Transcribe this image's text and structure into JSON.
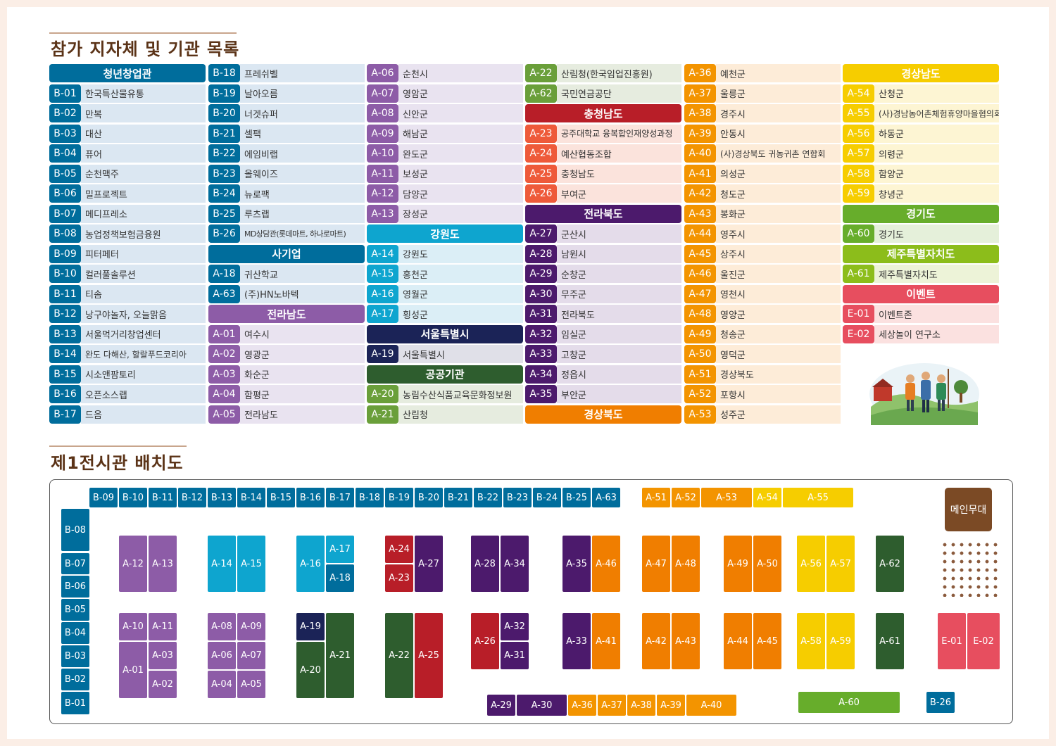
{
  "title_list": "참가 지자체 및 기관 목록",
  "title_map": "제1전시관 배치도",
  "colors": {
    "cheongnyeon": "#006d9c",
    "sagiup": "#006d9c",
    "jeonnam": "#8d5ca7",
    "gangwon": "#0ea5cf",
    "seoul": "#1b2357",
    "gonggong": "#2e5d2e",
    "sanrim_light": "#6a9f3a",
    "chungnam": "#b81e28",
    "jeonbuk": "#4c1a6c",
    "gyeongbuk": "#f07e00",
    "gyeongnam": "#f6cd00",
    "gyeonggi": "#67ad2b",
    "jeju": "#8cbd1b",
    "event": "#e74e5f"
  },
  "columns": [
    [
      {
        "type": "hdr",
        "label": "청년창업관",
        "color": "#006d9c"
      },
      {
        "code": "B-01",
        "name": "한국특산물유통",
        "color": "#006d9c",
        "bg": "#dbe7f2"
      },
      {
        "code": "B-02",
        "name": "만복",
        "color": "#006d9c",
        "bg": "#dbe7f2"
      },
      {
        "code": "B-03",
        "name": "대산",
        "color": "#006d9c",
        "bg": "#dbe7f2"
      },
      {
        "code": "B-04",
        "name": "퓨어",
        "color": "#006d9c",
        "bg": "#dbe7f2"
      },
      {
        "code": "B-05",
        "name": "순천맥주",
        "color": "#006d9c",
        "bg": "#dbe7f2"
      },
      {
        "code": "B-06",
        "name": "밀프로젝트",
        "color": "#006d9c",
        "bg": "#dbe7f2"
      },
      {
        "code": "B-07",
        "name": "메디프레소",
        "color": "#006d9c",
        "bg": "#dbe7f2"
      },
      {
        "code": "B-08",
        "name": "농업정책보험금융원",
        "color": "#006d9c",
        "bg": "#dbe7f2"
      },
      {
        "code": "B-09",
        "name": "피터페터",
        "color": "#006d9c",
        "bg": "#dbe7f2"
      },
      {
        "code": "B-10",
        "name": "컬러풀솔루션",
        "color": "#006d9c",
        "bg": "#dbe7f2"
      },
      {
        "code": "B-11",
        "name": "티솜",
        "color": "#006d9c",
        "bg": "#dbe7f2"
      },
      {
        "code": "B-12",
        "name": "낭구야놀자, 오늘맑음",
        "color": "#006d9c",
        "bg": "#dbe7f2"
      },
      {
        "code": "B-13",
        "name": "서울먹거리창업센터",
        "color": "#006d9c",
        "bg": "#dbe7f2"
      },
      {
        "code": "B-14",
        "name": "완도 다해산, 할랄푸드코리아",
        "color": "#006d9c",
        "bg": "#dbe7f2"
      },
      {
        "code": "B-15",
        "name": "시소앤팜토리",
        "color": "#006d9c",
        "bg": "#dbe7f2"
      },
      {
        "code": "B-16",
        "name": "오픈소스랩",
        "color": "#006d9c",
        "bg": "#dbe7f2"
      },
      {
        "code": "B-17",
        "name": "드음",
        "color": "#006d9c",
        "bg": "#dbe7f2"
      }
    ],
    [
      {
        "code": "B-18",
        "name": "프레쉬벨",
        "color": "#006d9c",
        "bg": "#dbe7f2"
      },
      {
        "code": "B-19",
        "name": "날아오름",
        "color": "#006d9c",
        "bg": "#dbe7f2"
      },
      {
        "code": "B-20",
        "name": "너겟슈퍼",
        "color": "#006d9c",
        "bg": "#dbe7f2"
      },
      {
        "code": "B-21",
        "name": "셀팩",
        "color": "#006d9c",
        "bg": "#dbe7f2"
      },
      {
        "code": "B-22",
        "name": "에임비랩",
        "color": "#006d9c",
        "bg": "#dbe7f2"
      },
      {
        "code": "B-23",
        "name": "올웨이즈",
        "color": "#006d9c",
        "bg": "#dbe7f2"
      },
      {
        "code": "B-24",
        "name": "뉴로팩",
        "color": "#006d9c",
        "bg": "#dbe7f2"
      },
      {
        "code": "B-25",
        "name": "루츠랩",
        "color": "#006d9c",
        "bg": "#dbe7f2"
      },
      {
        "code": "B-26",
        "name": "MD상담관(롯데마트, 하나로마트)",
        "color": "#006d9c",
        "bg": "#dbe7f2"
      },
      {
        "type": "hdr",
        "label": "사기업",
        "color": "#006d9c"
      },
      {
        "code": "A-18",
        "name": "귀산학교",
        "color": "#006d9c",
        "bg": "#dbe7f2"
      },
      {
        "code": "A-63",
        "name": "(주)HN노바텍",
        "color": "#006d9c",
        "bg": "#dbe7f2"
      },
      {
        "type": "hdr",
        "label": "전라남도",
        "color": "#8d5ca7"
      },
      {
        "code": "A-01",
        "name": "여수시",
        "color": "#8d5ca7",
        "bg": "#e9e3f0"
      },
      {
        "code": "A-02",
        "name": "영광군",
        "color": "#8d5ca7",
        "bg": "#e9e3f0"
      },
      {
        "code": "A-03",
        "name": "화순군",
        "color": "#8d5ca7",
        "bg": "#e9e3f0"
      },
      {
        "code": "A-04",
        "name": "함평군",
        "color": "#8d5ca7",
        "bg": "#e9e3f0"
      },
      {
        "code": "A-05",
        "name": "전라남도",
        "color": "#8d5ca7",
        "bg": "#e9e3f0"
      }
    ],
    [
      {
        "code": "A-06",
        "name": "순천시",
        "color": "#8d5ca7",
        "bg": "#e9e3f0"
      },
      {
        "code": "A-07",
        "name": "영암군",
        "color": "#8d5ca7",
        "bg": "#e9e3f0"
      },
      {
        "code": "A-08",
        "name": "신안군",
        "color": "#8d5ca7",
        "bg": "#e9e3f0"
      },
      {
        "code": "A-09",
        "name": "해남군",
        "color": "#8d5ca7",
        "bg": "#e9e3f0"
      },
      {
        "code": "A-10",
        "name": "완도군",
        "color": "#8d5ca7",
        "bg": "#e9e3f0"
      },
      {
        "code": "A-11",
        "name": "보성군",
        "color": "#8d5ca7",
        "bg": "#e9e3f0"
      },
      {
        "code": "A-12",
        "name": "담양군",
        "color": "#8d5ca7",
        "bg": "#e9e3f0"
      },
      {
        "code": "A-13",
        "name": "장성군",
        "color": "#8d5ca7",
        "bg": "#e9e3f0"
      },
      {
        "type": "hdr",
        "label": "강원도",
        "color": "#0ea5cf"
      },
      {
        "code": "A-14",
        "name": "강원도",
        "color": "#0ea5cf",
        "bg": "#dbeef6"
      },
      {
        "code": "A-15",
        "name": "홍천군",
        "color": "#0ea5cf",
        "bg": "#dbeef6"
      },
      {
        "code": "A-16",
        "name": "영월군",
        "color": "#0ea5cf",
        "bg": "#dbeef6"
      },
      {
        "code": "A-17",
        "name": "횡성군",
        "color": "#0ea5cf",
        "bg": "#dbeef6"
      },
      {
        "type": "hdr",
        "label": "서울특별시",
        "color": "#1b2357"
      },
      {
        "code": "A-19",
        "name": "서울특별시",
        "color": "#1b2357",
        "bg": "#e0e0e8"
      },
      {
        "type": "hdr",
        "label": "공공기관",
        "color": "#2e5d2e"
      },
      {
        "code": "A-20",
        "name": "농림수산식품교육문화정보원",
        "color": "#6a9f3a",
        "bg": "#e6ecdf"
      },
      {
        "code": "A-21",
        "name": "산림청",
        "color": "#6a9f3a",
        "bg": "#e6ecdf"
      }
    ],
    [
      {
        "code": "A-22",
        "name": "산림청(한국임업진흥원)",
        "color": "#6a9f3a",
        "bg": "#e6ecdf"
      },
      {
        "code": "A-62",
        "name": "국민연금공단",
        "color": "#6a9f3a",
        "bg": "#e6ecdf"
      },
      {
        "type": "hdr",
        "label": "충청남도",
        "color": "#b81e28"
      },
      {
        "code": "A-23",
        "name": "공주대학교 융복합인재양성과정",
        "color": "#ee5a3a",
        "bg": "#fbe3dc"
      },
      {
        "code": "A-24",
        "name": "예산협동조합",
        "color": "#ee5a3a",
        "bg": "#fbe3dc"
      },
      {
        "code": "A-25",
        "name": "충청남도",
        "color": "#ee5a3a",
        "bg": "#fbe3dc"
      },
      {
        "code": "A-26",
        "name": "부여군",
        "color": "#ee5a3a",
        "bg": "#fbe3dc"
      },
      {
        "type": "hdr",
        "label": "전라북도",
        "color": "#4c1a6c"
      },
      {
        "code": "A-27",
        "name": "군산시",
        "color": "#4c1a6c",
        "bg": "#e4dcea"
      },
      {
        "code": "A-28",
        "name": "남원시",
        "color": "#4c1a6c",
        "bg": "#e4dcea"
      },
      {
        "code": "A-29",
        "name": "순창군",
        "color": "#4c1a6c",
        "bg": "#e4dcea"
      },
      {
        "code": "A-30",
        "name": "무주군",
        "color": "#4c1a6c",
        "bg": "#e4dcea"
      },
      {
        "code": "A-31",
        "name": "전라북도",
        "color": "#4c1a6c",
        "bg": "#e4dcea"
      },
      {
        "code": "A-32",
        "name": "임실군",
        "color": "#4c1a6c",
        "bg": "#e4dcea"
      },
      {
        "code": "A-33",
        "name": "고창군",
        "color": "#4c1a6c",
        "bg": "#e4dcea"
      },
      {
        "code": "A-34",
        "name": "정읍시",
        "color": "#4c1a6c",
        "bg": "#e4dcea"
      },
      {
        "code": "A-35",
        "name": "부안군",
        "color": "#4c1a6c",
        "bg": "#e4dcea"
      },
      {
        "type": "hdr",
        "label": "경상북도",
        "color": "#f07e00"
      }
    ],
    [
      {
        "code": "A-36",
        "name": "예천군",
        "color": "#f39400",
        "bg": "#fdecd8"
      },
      {
        "code": "A-37",
        "name": "울릉군",
        "color": "#f39400",
        "bg": "#fdecd8"
      },
      {
        "code": "A-38",
        "name": "경주시",
        "color": "#f39400",
        "bg": "#fdecd8"
      },
      {
        "code": "A-39",
        "name": "안동시",
        "color": "#f39400",
        "bg": "#fdecd8"
      },
      {
        "code": "A-40",
        "name": "(사)경상북도 귀농귀촌 연합회",
        "color": "#f39400",
        "bg": "#fdecd8"
      },
      {
        "code": "A-41",
        "name": "의성군",
        "color": "#f39400",
        "bg": "#fdecd8"
      },
      {
        "code": "A-42",
        "name": "청도군",
        "color": "#f39400",
        "bg": "#fdecd8"
      },
      {
        "code": "A-43",
        "name": "봉화군",
        "color": "#f39400",
        "bg": "#fdecd8"
      },
      {
        "code": "A-44",
        "name": "영주시",
        "color": "#f39400",
        "bg": "#fdecd8"
      },
      {
        "code": "A-45",
        "name": "상주시",
        "color": "#f39400",
        "bg": "#fdecd8"
      },
      {
        "code": "A-46",
        "name": "울진군",
        "color": "#f39400",
        "bg": "#fdecd8"
      },
      {
        "code": "A-47",
        "name": "영천시",
        "color": "#f39400",
        "bg": "#fdecd8"
      },
      {
        "code": "A-48",
        "name": "영양군",
        "color": "#f39400",
        "bg": "#fdecd8"
      },
      {
        "code": "A-49",
        "name": "청송군",
        "color": "#f39400",
        "bg": "#fdecd8"
      },
      {
        "code": "A-50",
        "name": "영덕군",
        "color": "#f39400",
        "bg": "#fdecd8"
      },
      {
        "code": "A-51",
        "name": "경상북도",
        "color": "#f39400",
        "bg": "#fdecd8"
      },
      {
        "code": "A-52",
        "name": "포항시",
        "color": "#f39400",
        "bg": "#fdecd8"
      },
      {
        "code": "A-53",
        "name": "성주군",
        "color": "#f39400",
        "bg": "#fdecd8"
      }
    ],
    [
      {
        "type": "hdr",
        "label": "경상남도",
        "color": "#f6cd00"
      },
      {
        "code": "A-54",
        "name": "산청군",
        "color": "#f6cd00",
        "bg": "#fdf5d3"
      },
      {
        "code": "A-55",
        "name": "(사)경남농어촌체험휴양마을협의회",
        "color": "#f6cd00",
        "bg": "#fdf5d3"
      },
      {
        "code": "A-56",
        "name": "하동군",
        "color": "#f6cd00",
        "bg": "#fdf5d3"
      },
      {
        "code": "A-57",
        "name": "의령군",
        "color": "#f6cd00",
        "bg": "#fdf5d3"
      },
      {
        "code": "A-58",
        "name": "함양군",
        "color": "#f6cd00",
        "bg": "#fdf5d3"
      },
      {
        "code": "A-59",
        "name": "창녕군",
        "color": "#f6cd00",
        "bg": "#fdf5d3"
      },
      {
        "type": "hdr",
        "label": "경기도",
        "color": "#67ad2b"
      },
      {
        "code": "A-60",
        "name": "경기도",
        "color": "#67ad2b",
        "bg": "#e5f0da"
      },
      {
        "type": "hdr",
        "label": "제주특별자치도",
        "color": "#8cbd1b"
      },
      {
        "code": "A-61",
        "name": "제주특별자치도",
        "color": "#8cbd1b",
        "bg": "#edf3d8"
      },
      {
        "type": "hdr",
        "label": "이벤트",
        "color": "#e74e5f"
      },
      {
        "code": "E-01",
        "name": "이벤트존",
        "color": "#e74e5f",
        "bg": "#fbe1e0"
      },
      {
        "code": "E-02",
        "name": "세상놀이 연구소",
        "color": "#e74e5f",
        "bg": "#fbe1e0"
      }
    ]
  ],
  "main_stage_label": "메인무대",
  "booths": [
    {
      "label": "B-09",
      "color": "#006d9c"
    },
    {
      "label": "B-10",
      "color": "#006d9c"
    },
    {
      "label": "B-11",
      "color": "#006d9c"
    },
    {
      "label": "B-12",
      "color": "#006d9c"
    },
    {
      "label": "B-13",
      "color": "#006d9c"
    },
    {
      "label": "B-14",
      "color": "#006d9c"
    },
    {
      "label": "B-15",
      "color": "#006d9c"
    },
    {
      "label": "B-16",
      "color": "#006d9c"
    },
    {
      "label": "B-17",
      "color": "#006d9c"
    },
    {
      "label": "B-18",
      "color": "#006d9c"
    },
    {
      "label": "B-19",
      "color": "#006d9c"
    },
    {
      "label": "B-20",
      "color": "#006d9c"
    },
    {
      "label": "B-21",
      "color": "#006d9c"
    },
    {
      "label": "B-22",
      "color": "#006d9c"
    },
    {
      "label": "B-23",
      "color": "#006d9c"
    },
    {
      "label": "B-24",
      "color": "#006d9c"
    },
    {
      "label": "B-25",
      "color": "#006d9c"
    },
    {
      "label": "A-63",
      "color": "#006d9c"
    },
    {
      "label": "A-51",
      "color": "#f39400"
    },
    {
      "label": "A-52",
      "color": "#f39400"
    },
    {
      "label": "A-53",
      "color": "#f39400"
    },
    {
      "label": "A-54",
      "color": "#f6cd00"
    },
    {
      "label": "A-55",
      "color": "#f6cd00"
    },
    {
      "label": "B-08",
      "color": "#006d9c"
    },
    {
      "label": "B-07",
      "color": "#006d9c"
    },
    {
      "label": "B-06",
      "color": "#006d9c"
    },
    {
      "label": "B-05",
      "color": "#006d9c"
    },
    {
      "label": "B-04",
      "color": "#006d9c"
    },
    {
      "label": "B-03",
      "color": "#006d9c"
    },
    {
      "label": "B-02",
      "color": "#006d9c"
    },
    {
      "label": "B-01",
      "color": "#006d9c"
    },
    {
      "label": "A-12",
      "color": "#8d5ca7"
    },
    {
      "label": "A-13",
      "color": "#8d5ca7"
    },
    {
      "label": "A-14",
      "color": "#0ea5cf"
    },
    {
      "label": "A-15",
      "color": "#0ea5cf"
    },
    {
      "label": "A-16",
      "color": "#0ea5cf"
    },
    {
      "label": "A-17",
      "color": "#0ea5cf"
    },
    {
      "label": "A-18",
      "color": "#006d9c"
    },
    {
      "label": "A-24",
      "color": "#b81e28"
    },
    {
      "label": "A-23",
      "color": "#b81e28"
    },
    {
      "label": "A-27",
      "color": "#4c1a6c"
    },
    {
      "label": "A-28",
      "color": "#4c1a6c"
    },
    {
      "label": "A-34",
      "color": "#4c1a6c"
    },
    {
      "label": "A-35",
      "color": "#4c1a6c"
    },
    {
      "label": "A-46",
      "color": "#f07e00"
    },
    {
      "label": "A-47",
      "color": "#f07e00"
    },
    {
      "label": "A-48",
      "color": "#f07e00"
    },
    {
      "label": "A-49",
      "color": "#f07e00"
    },
    {
      "label": "A-50",
      "color": "#f07e00"
    },
    {
      "label": "A-56",
      "color": "#f6cd00"
    },
    {
      "label": "A-57",
      "color": "#f6cd00"
    },
    {
      "label": "A-62",
      "color": "#2e5d2e"
    },
    {
      "label": "A-10",
      "color": "#8d5ca7"
    },
    {
      "label": "A-11",
      "color": "#8d5ca7"
    },
    {
      "label": "A-01",
      "color": "#8d5ca7"
    },
    {
      "label": "A-03",
      "color": "#8d5ca7"
    },
    {
      "label": "A-02",
      "color": "#8d5ca7"
    },
    {
      "label": "A-08",
      "color": "#8d5ca7"
    },
    {
      "label": "A-09",
      "color": "#8d5ca7"
    },
    {
      "label": "A-06",
      "color": "#8d5ca7"
    },
    {
      "label": "A-07",
      "color": "#8d5ca7"
    },
    {
      "label": "A-04",
      "color": "#8d5ca7"
    },
    {
      "label": "A-05",
      "color": "#8d5ca7"
    },
    {
      "label": "A-19",
      "color": "#1b2357"
    },
    {
      "label": "A-20",
      "color": "#2e5d2e"
    },
    {
      "label": "A-21",
      "color": "#2e5d2e"
    },
    {
      "label": "A-22",
      "color": "#2e5d2e"
    },
    {
      "label": "A-25",
      "color": "#b81e28"
    },
    {
      "label": "A-26",
      "color": "#b81e28"
    },
    {
      "label": "A-32",
      "color": "#4c1a6c"
    },
    {
      "label": "A-31",
      "color": "#4c1a6c"
    },
    {
      "label": "A-33",
      "color": "#4c1a6c"
    },
    {
      "label": "A-41",
      "color": "#f07e00"
    },
    {
      "label": "A-42",
      "color": "#f07e00"
    },
    {
      "label": "A-43",
      "color": "#f07e00"
    },
    {
      "label": "A-44",
      "color": "#f07e00"
    },
    {
      "label": "A-45",
      "color": "#f07e00"
    },
    {
      "label": "A-58",
      "color": "#f6cd00"
    },
    {
      "label": "A-59",
      "color": "#f6cd00"
    },
    {
      "label": "A-61",
      "color": "#2e5d2e"
    },
    {
      "label": "E-01",
      "color": "#e74e5f"
    },
    {
      "label": "E-02",
      "color": "#e74e5f"
    },
    {
      "label": "A-29",
      "color": "#4c1a6c"
    },
    {
      "label": "A-30",
      "color": "#4c1a6c"
    },
    {
      "label": "A-36",
      "color": "#f39400"
    },
    {
      "label": "A-37",
      "color": "#f39400"
    },
    {
      "label": "A-38",
      "color": "#f39400"
    },
    {
      "label": "A-39",
      "color": "#f39400"
    },
    {
      "label": "A-40",
      "color": "#f39400"
    },
    {
      "label": "A-60",
      "color": "#67ad2b"
    },
    {
      "label": "B-26",
      "color": "#006d9c"
    }
  ]
}
